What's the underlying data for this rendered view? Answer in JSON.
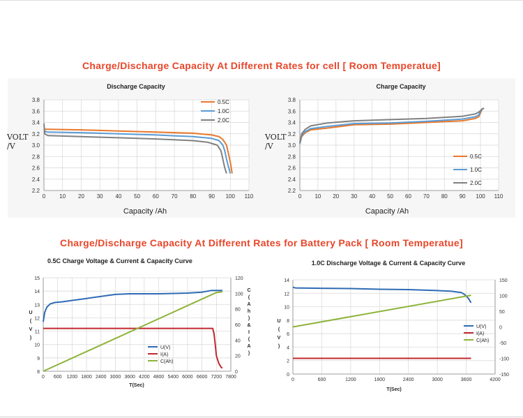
{
  "headings": {
    "cell": "Charge/Discharge Capacity At Different Rates for cell [ Room Temperatue]",
    "pack": "Charge/Discharge Capacity At Different Rates for Battery Pack [ Room Temperatue]"
  },
  "chart_data": [
    {
      "id": "cell_discharge",
      "type": "line",
      "title": "Discharge Capacity",
      "xlabel": "Capacity /Ah",
      "ylabel": "VOLT /V",
      "xlim": [
        0,
        110
      ],
      "ylim": [
        2.2,
        3.8
      ],
      "xticks": [
        0,
        10,
        20,
        30,
        40,
        50,
        60,
        70,
        80,
        90,
        100,
        110
      ],
      "yticks": [
        "2.2",
        "2.4",
        "2.6",
        "2.8",
        "3.0",
        "3.2",
        "3.4",
        "3.6",
        "3.8"
      ],
      "grid": true,
      "legend": "top-right",
      "series": [
        {
          "name": "0.5C",
          "color": "#e8782a",
          "x": [
            0,
            2,
            20,
            40,
            60,
            80,
            90,
            94,
            96,
            98,
            99,
            100,
            101
          ],
          "y": [
            3.28,
            3.28,
            3.27,
            3.25,
            3.23,
            3.21,
            3.18,
            3.15,
            3.1,
            3.0,
            2.85,
            2.7,
            2.5
          ]
        },
        {
          "name": "1.0C",
          "color": "#5b9bd5",
          "x": [
            0,
            2,
            20,
            40,
            60,
            80,
            90,
            94,
            96,
            97,
            98,
            99,
            100
          ],
          "y": [
            3.25,
            3.23,
            3.22,
            3.2,
            3.18,
            3.15,
            3.12,
            3.08,
            3.0,
            2.9,
            2.75,
            2.62,
            2.5
          ]
        },
        {
          "name": "2.0C",
          "color": "#808080",
          "x": [
            0,
            0.5,
            2,
            20,
            40,
            60,
            80,
            88,
            93,
            95,
            96,
            97,
            98
          ],
          "y": [
            3.38,
            3.2,
            3.17,
            3.15,
            3.13,
            3.11,
            3.08,
            3.05,
            3.0,
            2.9,
            2.75,
            2.6,
            2.5
          ]
        }
      ]
    },
    {
      "id": "cell_charge",
      "type": "line",
      "title": "Charge Capacity",
      "xlabel": "Capacity /Ah",
      "ylabel": "VOLT /V",
      "xlim": [
        0,
        110
      ],
      "ylim": [
        2.2,
        3.8
      ],
      "xticks": [
        0,
        10,
        20,
        30,
        40,
        50,
        60,
        70,
        80,
        90,
        100,
        110
      ],
      "yticks": [
        "2.2",
        "2.4",
        "2.6",
        "2.8",
        "3.0",
        "3.2",
        "3.4",
        "3.6",
        "3.8"
      ],
      "grid": true,
      "legend": "bottom-right",
      "series": [
        {
          "name": "0.5C",
          "color": "#e8782a",
          "x": [
            0,
            1,
            3,
            6,
            15,
            30,
            50,
            70,
            90,
            97,
            99,
            101
          ],
          "y": [
            3.02,
            3.15,
            3.22,
            3.27,
            3.3,
            3.36,
            3.37,
            3.4,
            3.43,
            3.47,
            3.5,
            3.64
          ]
        },
        {
          "name": "1.0C",
          "color": "#5b9bd5",
          "x": [
            0,
            1,
            3,
            6,
            15,
            30,
            50,
            70,
            90,
            97,
            99,
            101
          ],
          "y": [
            3.03,
            3.17,
            3.24,
            3.29,
            3.33,
            3.38,
            3.39,
            3.42,
            3.46,
            3.5,
            3.53,
            3.65
          ]
        },
        {
          "name": "2.0C",
          "color": "#808080",
          "x": [
            0,
            1,
            3,
            6,
            15,
            30,
            50,
            70,
            90,
            97,
            99,
            101,
            102
          ],
          "y": [
            3.05,
            3.2,
            3.28,
            3.34,
            3.39,
            3.43,
            3.45,
            3.47,
            3.51,
            3.55,
            3.58,
            3.64,
            3.65
          ]
        }
      ]
    },
    {
      "id": "pack_charge",
      "type": "line",
      "title": "0.5C Charge Voltage & Current & Capacity Curve",
      "xlabel": "T(Sec)",
      "ylabel": "U ( V )",
      "y2label": "C ( A h ) & I ( A )",
      "xlim": [
        0,
        7800
      ],
      "ylim": [
        8,
        15
      ],
      "y2lim": [
        0,
        120
      ],
      "xticks": [
        0,
        600,
        1200,
        1800,
        2400,
        3000,
        3600,
        4200,
        4800,
        5400,
        6000,
        6600,
        7200,
        7800
      ],
      "yticks": [
        8,
        9,
        10,
        11,
        12,
        13,
        14,
        15
      ],
      "y2ticks": [
        0,
        20,
        40,
        60,
        80,
        100,
        120
      ],
      "grid": true,
      "legend": "center-right",
      "series": [
        {
          "name": "U(V)",
          "color": "#2e6bb5",
          "axis": "left",
          "x": [
            0,
            60,
            150,
            300,
            500,
            800,
            1200,
            1800,
            2400,
            3000,
            3600,
            4800,
            6000,
            6600,
            6900,
            7000,
            7200,
            7450
          ],
          "y": [
            11.7,
            12.4,
            12.8,
            13.05,
            13.15,
            13.2,
            13.3,
            13.45,
            13.6,
            13.75,
            13.8,
            13.8,
            13.85,
            13.92,
            14.02,
            14.05,
            14.05,
            14.05
          ]
        },
        {
          "name": "I(A)",
          "color": "#c0282e",
          "axis": "right",
          "x": [
            0,
            6000,
            7050,
            7100,
            7150,
            7200,
            7300,
            7400,
            7450
          ],
          "y": [
            55,
            55,
            55,
            48,
            35,
            20,
            10,
            5,
            4
          ]
        },
        {
          "name": "C(Ah)",
          "color": "#8db33a",
          "axis": "right",
          "x": [
            0,
            7200,
            7450
          ],
          "y": [
            0,
            101,
            102
          ]
        }
      ]
    },
    {
      "id": "pack_discharge",
      "type": "line",
      "title": "1.0C Discharge Voltage & Current & Capacity Curve",
      "xlabel": "T(Sec)",
      "ylabel": "U ( V )",
      "xlim": [
        0,
        4200
      ],
      "ylim": [
        0,
        14
      ],
      "y2lim": [
        -150,
        150
      ],
      "xticks": [
        0,
        600,
        1200,
        1800,
        2400,
        3000,
        3600,
        4200
      ],
      "yticks": [
        0,
        2,
        4,
        6,
        8,
        10,
        12,
        14
      ],
      "y2ticks": [
        -150,
        -100,
        -50,
        0,
        50,
        100,
        150
      ],
      "grid": true,
      "legend": "center-right",
      "series": [
        {
          "name": "U(V)",
          "color": "#2e6bb5",
          "axis": "left",
          "x": [
            0,
            50,
            600,
            1200,
            1800,
            2400,
            3000,
            3300,
            3500,
            3550,
            3600,
            3650,
            3700
          ],
          "y": [
            12.9,
            12.8,
            12.75,
            12.7,
            12.6,
            12.55,
            12.4,
            12.3,
            12.1,
            11.9,
            11.6,
            11.2,
            10.6
          ]
        },
        {
          "name": "I(A)",
          "color": "#c0282e",
          "axis": "right",
          "x": [
            0,
            3700
          ],
          "y": [
            -100,
            -100
          ]
        },
        {
          "name": "C(Ah)",
          "color": "#8db33a",
          "axis": "right",
          "x": [
            0,
            3700
          ],
          "y": [
            0,
            101
          ]
        }
      ]
    }
  ]
}
